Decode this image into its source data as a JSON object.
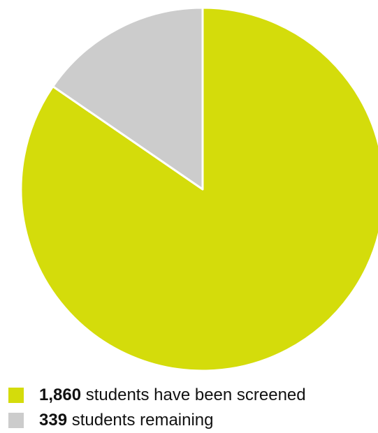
{
  "chart_data": {
    "type": "pie",
    "slices": [
      {
        "label": "students have been screened",
        "value": 1860,
        "display_value": "1,860",
        "color": "#d4dc0b"
      },
      {
        "label": "students remaining",
        "value": 339,
        "display_value": "339",
        "color": "#cccccc"
      }
    ],
    "start_angle": "12 o'clock",
    "direction": "clockwise",
    "legend_position": "bottom-left"
  }
}
